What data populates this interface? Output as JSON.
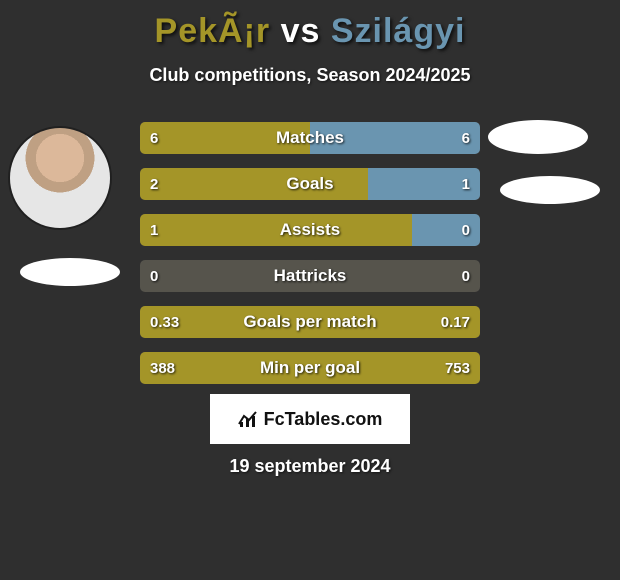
{
  "title": {
    "player1": "PekÃ¡r",
    "vs": "vs",
    "player2": "Szilágyi",
    "player1_color": "#a49528",
    "player2_color": "#6a95b0"
  },
  "subtitle": "Club competitions, Season 2024/2025",
  "colors": {
    "left": "#a49528",
    "right": "#6a95b0",
    "neutral": "#56544c",
    "background": "#2f2f2f",
    "text": "#ffffff"
  },
  "bar_style": {
    "height": 32,
    "gap": 14,
    "border_radius": 5,
    "font_size_label": 17,
    "font_size_value": 15
  },
  "rows": [
    {
      "label": "Matches",
      "left_val": "6",
      "right_val": "6",
      "left_pct": 50,
      "right_pct": 50,
      "neutral": false
    },
    {
      "label": "Goals",
      "left_val": "2",
      "right_val": "1",
      "left_pct": 67,
      "right_pct": 33,
      "neutral": false
    },
    {
      "label": "Assists",
      "left_val": "1",
      "right_val": "0",
      "left_pct": 80,
      "right_pct": 20,
      "neutral": false
    },
    {
      "label": "Hattricks",
      "left_val": "0",
      "right_val": "0",
      "left_pct": 0,
      "right_pct": 0,
      "neutral": true
    },
    {
      "label": "Goals per match",
      "left_val": "0.33",
      "right_val": "0.17",
      "left_pct": 100,
      "right_pct": 0,
      "neutral": false
    },
    {
      "label": "Min per goal",
      "left_val": "388",
      "right_val": "753",
      "left_pct": 100,
      "right_pct": 0,
      "neutral": false
    }
  ],
  "footer": {
    "brand": "FcTables.com",
    "date": "19 september 2024"
  }
}
